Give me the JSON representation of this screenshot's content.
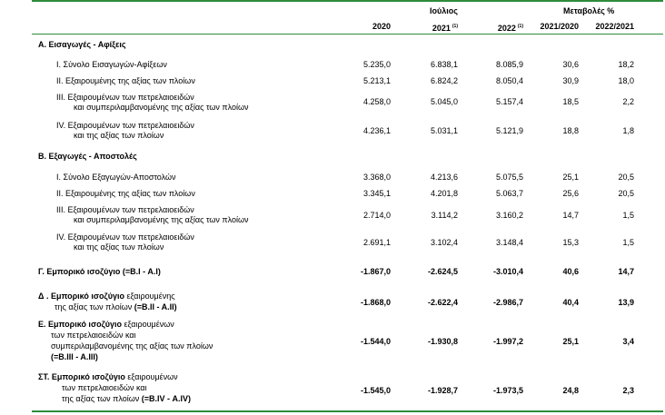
{
  "header": {
    "month": "Ιούλιος",
    "change_label": "Μεταβολές %",
    "cols": [
      "2020",
      "2021",
      "2022",
      "2021/2020",
      "2022/2021"
    ],
    "note_mark": "(1)"
  },
  "sections": {
    "A": {
      "title": "Α. Εισαγωγές - Αφίξεις",
      "rows": [
        {
          "label": [
            "I.   Σύνολο Εισαγωγών-Αφίξεων"
          ],
          "v": [
            "5.235,0",
            "6.838,1",
            "8.085,9",
            "30,6",
            "18,2"
          ]
        },
        {
          "label": [
            "II.  Εξαιρουμένης της αξίας των πλοίων"
          ],
          "v": [
            "5.213,1",
            "6.824,2",
            "8.050,4",
            "30,9",
            "18,0"
          ]
        },
        {
          "label": [
            "III. Εξαιρουμένων των πετρελαιοειδών",
            "και συμπεριλαμβανομένης της αξίας των πλοίων"
          ],
          "v": [
            "4.258,0",
            "5.045,0",
            "5.157,4",
            "18,5",
            "2,2"
          ]
        },
        {
          "label": [
            "IV. Εξαιρουμένων των πετρελαιοειδών",
            "και  της αξίας των πλοίων"
          ],
          "v": [
            "4.236,1",
            "5.031,1",
            "5.121,9",
            "18,8",
            "1,8"
          ]
        }
      ]
    },
    "B": {
      "title": "Β. Εξαγωγές - Αποστολές",
      "rows": [
        {
          "label": [
            "I.   Σύνολο Εξαγωγών-Αποστολών"
          ],
          "v": [
            "3.368,0",
            "4.213,6",
            "5.075,5",
            "25,1",
            "20,5"
          ]
        },
        {
          "label": [
            "II.  Εξαιρουμένης της αξίας των πλοίων"
          ],
          "v": [
            "3.345,1",
            "4.201,8",
            "5.063,7",
            "25,6",
            "20,5"
          ]
        },
        {
          "label": [
            "III. Εξαιρουμένων των πετρελαιοειδών",
            "και συμπεριλαμβανομένης της αξίας των πλοίων"
          ],
          "v": [
            "2.714,0",
            "3.114,2",
            "3.160,2",
            "14,7",
            "1,5"
          ]
        },
        {
          "label": [
            "IV. Εξαιρουμένων των πετρελαιοειδών",
            "και της αξίας των πλοίων"
          ],
          "v": [
            "2.691,1",
            "3.102,4",
            "3.148,4",
            "15,3",
            "1,5"
          ]
        }
      ]
    },
    "G": {
      "label": "Γ. Εμπορικό ισοζύγιο (=Β.Ι - Α.Ι)",
      "v": [
        "-1.867,0",
        "-2.624,5",
        "-3.010,4",
        "40,6",
        "14,7"
      ]
    },
    "D": {
      "label1_bold": "Δ . Εμπορικό ισοζύγιο",
      "label1_rest": " εξαιρουμένης",
      "label2_plain": "της αξίας των πλοίων ",
      "label2_bold": "(=Β.ΙΙ - Α.ΙΙ)",
      "v": [
        "-1.868,0",
        "-2.622,4",
        "-2.986,7",
        "40,4",
        "13,9"
      ]
    },
    "E": {
      "label1_bold": "Ε. Εμπορικό ισοζύγιο",
      "label1_rest": " εξαιρουμένων",
      "label2": "των πετρελαιοειδών και",
      "label3": "συμπεριλαμβανομένης της αξίας των πλοίων",
      "label4_bold": "(=Β.ΙΙΙ - Α.ΙΙΙ)",
      "v": [
        "-1.544,0",
        "-1.930,8",
        "-1.997,2",
        "25,1",
        "3,4"
      ]
    },
    "ST": {
      "label1_bold": "ΣΤ. Εμπορικό ισοζύγιο",
      "label1_rest": " εξαιρουμένων",
      "label2": "των πετρελαιοειδών και",
      "label3_plain": "της αξίας των πλοίων ",
      "label3_bold": "(=Β.IV - Α.IV)",
      "v": [
        "-1.545,0",
        "-1.928,7",
        "-1.973,5",
        "24,8",
        "2,3"
      ]
    }
  },
  "colors": {
    "rule": "#2e8b3a"
  }
}
